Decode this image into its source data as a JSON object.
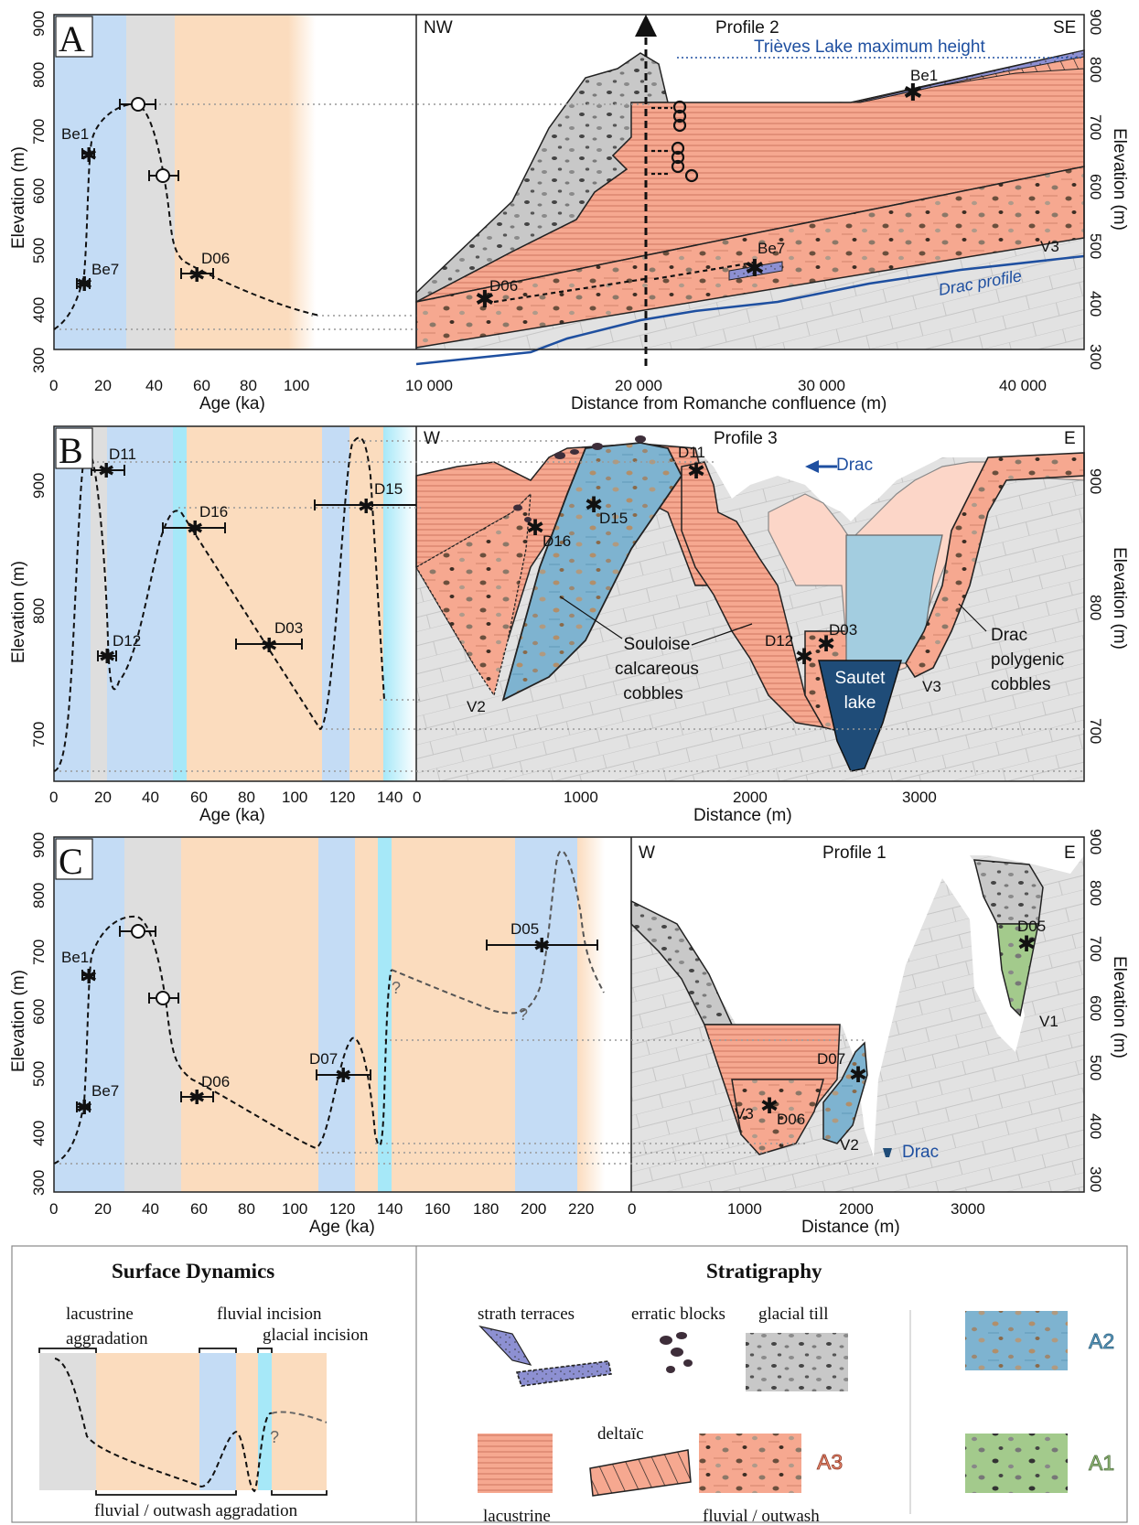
{
  "panels": {
    "A": {
      "letter": "A",
      "profile_title": "Profile 2",
      "left_dir": "NW",
      "right_dir": "SE",
      "age_axis_label": "Age (ka)",
      "elev_axis_label": "Elevation (m)",
      "dist_axis_label": "Distance from Romanche confluence (m)",
      "lake_label": "Trièves Lake maximum height",
      "drac_profile_label": "Drac profile",
      "age_ticks": [
        "0",
        "20",
        "40",
        "60",
        "80",
        "100"
      ],
      "elev_ticks": [
        "300",
        "400",
        "500",
        "600",
        "700",
        "800",
        "900"
      ],
      "dist_ticks": [
        "10 000",
        "20 000",
        "30 000",
        "40 000"
      ],
      "points": [
        "Be1",
        "Be7",
        "D06",
        "Be1",
        "Be7",
        "D06",
        "V3"
      ]
    },
    "B": {
      "letter": "B",
      "profile_title": "Profile 3",
      "left_dir": "W",
      "right_dir": "E",
      "age_axis_label": "Age (ka)",
      "elev_axis_label": "Elevation (m)",
      "dist_axis_label": "Distance (m)",
      "drac_label": "Drac",
      "age_ticks": [
        "0",
        "20",
        "40",
        "60",
        "80",
        "100",
        "120",
        "140"
      ],
      "elev_ticks": [
        "700",
        "800",
        "900"
      ],
      "dist_ticks": [
        "0",
        "1000",
        "2000",
        "3000"
      ],
      "souloise_label": [
        "Souloise",
        "calcareous",
        "cobbles"
      ],
      "drac_cobbles_label": [
        "Drac",
        "polygenic",
        "cobbles"
      ],
      "sautet_label": [
        "Sautet",
        "lake"
      ],
      "points": [
        "D11",
        "D16",
        "D12",
        "D03",
        "D15",
        "D11",
        "D15",
        "D16",
        "D12",
        "D03",
        "V2",
        "V3"
      ]
    },
    "C": {
      "letter": "C",
      "profile_title": "Profile 1",
      "left_dir": "W",
      "right_dir": "E",
      "age_axis_label": "Age (ka)",
      "elev_axis_label": "Elevation (m)",
      "dist_axis_label": "Distance (m)",
      "drac_label": "Drac",
      "age_ticks": [
        "0",
        "20",
        "40",
        "60",
        "80",
        "100",
        "120",
        "140",
        "160",
        "180",
        "200",
        "220"
      ],
      "elev_ticks": [
        "300",
        "400",
        "500",
        "600",
        "700",
        "800",
        "900"
      ],
      "dist_ticks": [
        "0",
        "1000",
        "2000",
        "3000"
      ],
      "question": "?",
      "points": [
        "Be1",
        "Be7",
        "D06",
        "D07",
        "D05",
        "D05",
        "D07",
        "D06",
        "V3",
        "V2",
        "V1"
      ]
    }
  },
  "legend": {
    "surface_title": "Surface Dynamics",
    "strat_title": "Stratigraphy",
    "lacustrine_aggradation": [
      "lacustrine",
      "aggradation"
    ],
    "fluvial_incision": "fluvial incision",
    "glacial_incision": "glacial incision",
    "fluvial_outwash_aggradation": "fluvial / outwash aggradation",
    "question": "?",
    "strath_terraces": "strath terraces",
    "erratic_blocks": "erratic blocks",
    "glacial_till": "glacial till",
    "deltaic": "deltaïc",
    "lacustrine": "lacustrine",
    "fluvial_outwash": "fluvial / outwash",
    "A1": "A1",
    "A2": "A2",
    "A3": "A3"
  },
  "colors": {
    "blue_band": "#c4dcf5",
    "grey_band": "#dedede",
    "orange_band": "#fbdcbe",
    "cyan_band": "#a6e8f8",
    "lacustrine": "#f5a48c",
    "fluvial": "#f7ab94",
    "till": "#c7c7c7",
    "bedrock": "#e1e1e1",
    "A2": "#7fb6d3",
    "A1": "#a6cc8e",
    "strath": "#8b8ed0",
    "lake": "#1f4c78",
    "drac_line": "#1e4fa0"
  }
}
